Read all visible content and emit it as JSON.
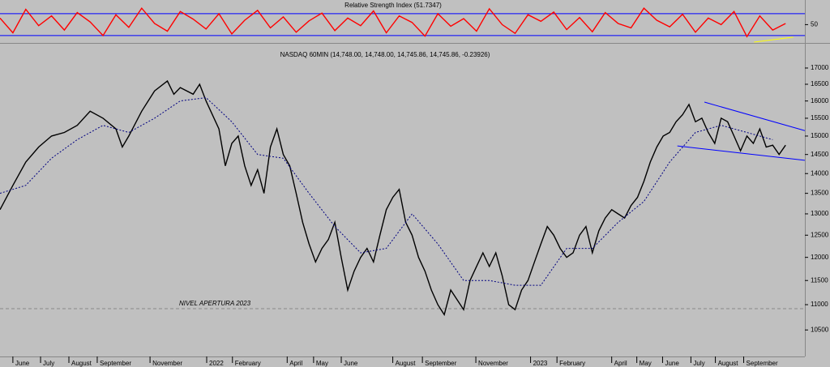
{
  "chart_data": [
    {
      "type": "line",
      "title": "Relative Strength Index (51.7347)",
      "xlim": [
        0,
        125
      ],
      "ylim": [
        18,
        95
      ],
      "yticks": [
        50
      ],
      "levels": [
        70,
        30
      ],
      "level_color": "#0000ff",
      "series": [
        {
          "name": "RSI",
          "color": "#ff0000",
          "x": [
            0,
            2,
            4,
            6,
            8,
            10,
            12,
            14,
            16,
            18,
            20,
            22,
            24,
            26,
            28,
            30,
            32,
            34,
            36,
            38,
            40,
            42,
            44,
            46,
            48,
            50,
            52,
            54,
            56,
            58,
            60,
            62,
            64,
            66,
            68,
            70,
            72,
            74,
            76,
            78,
            80,
            82,
            84,
            86,
            88,
            90,
            92,
            94,
            96,
            98,
            100,
            102,
            104,
            106,
            108,
            110,
            112,
            114,
            116,
            118,
            120,
            122
          ],
          "values": [
            62,
            35,
            78,
            48,
            66,
            40,
            72,
            55,
            30,
            68,
            45,
            80,
            52,
            38,
            74,
            60,
            42,
            70,
            33,
            58,
            76,
            44,
            64,
            36,
            57,
            71,
            39,
            62,
            48,
            75,
            35,
            66,
            54,
            29,
            70,
            47,
            61,
            38,
            79,
            50,
            34,
            68,
            56,
            73,
            41,
            63,
            37,
            72,
            52,
            44,
            80,
            58,
            46,
            69,
            36,
            62,
            50,
            74,
            28,
            66,
            40,
            52
          ]
        }
      ],
      "trendlines": [
        {
          "color": "#ffff00",
          "x": [
            117.1,
            123.2
          ],
          "y": [
            18,
            27
          ]
        }
      ]
    },
    {
      "type": "line",
      "title": "NASDAQ 60MIN (14,748.00, 14,748.00, 14,745.86, 14,745.86, -0.23926)",
      "xlim": [
        0,
        125
      ],
      "ylim": [
        10000,
        17750
      ],
      "log_scale": true,
      "yticks": [
        10500,
        11000,
        11500,
        12000,
        12500,
        13000,
        13500,
        14000,
        14500,
        15000,
        15500,
        16000,
        16500,
        17000
      ],
      "xticks": [
        {
          "value": 2,
          "label": "June"
        },
        {
          "value": 6.3,
          "label": "July"
        },
        {
          "value": 10.7,
          "label": "August"
        },
        {
          "value": 15.1,
          "label": "September"
        },
        {
          "value": 23.3,
          "label": "November"
        },
        {
          "value": 32.1,
          "label": "2022"
        },
        {
          "value": 36.1,
          "label": "February"
        },
        {
          "value": 44.6,
          "label": "April"
        },
        {
          "value": 48.7,
          "label": "May"
        },
        {
          "value": 53,
          "label": "June"
        },
        {
          "value": 61,
          "label": "August"
        },
        {
          "value": 65.6,
          "label": "September"
        },
        {
          "value": 73.9,
          "label": "November"
        },
        {
          "value": 82.4,
          "label": "2023"
        },
        {
          "value": 86.5,
          "label": "February"
        },
        {
          "value": 95,
          "label": "April"
        },
        {
          "value": 98.9,
          "label": "May"
        },
        {
          "value": 102.9,
          "label": "June"
        },
        {
          "value": 107.3,
          "label": "July"
        },
        {
          "value": 111.1,
          "label": "August"
        },
        {
          "value": 115.5,
          "label": "September"
        }
      ],
      "series": [
        {
          "name": "NASDAQ",
          "color": "#000000",
          "x": [
            0,
            2,
            4,
            6,
            8,
            10,
            12,
            14,
            16,
            18,
            19,
            20,
            22,
            24,
            26,
            27,
            28,
            30,
            31,
            32,
            34,
            35,
            36,
            37,
            38,
            39,
            40,
            41,
            42,
            43,
            44,
            45,
            46,
            47,
            48,
            49,
            50,
            51,
            52,
            53,
            54,
            55,
            56,
            57,
            58,
            59,
            60,
            61,
            62,
            63,
            64,
            65,
            66,
            67,
            68,
            69,
            70,
            71,
            72,
            73,
            74,
            75,
            76,
            77,
            78,
            79,
            80,
            81,
            82,
            83,
            84,
            85,
            86,
            87,
            88,
            89,
            90,
            91,
            92,
            93,
            94,
            95,
            96,
            97,
            98,
            99,
            100,
            101,
            102,
            103,
            104,
            105,
            106,
            107,
            108,
            109,
            110,
            111,
            112,
            113,
            114,
            115,
            116,
            117,
            118,
            119,
            120,
            121,
            122
          ],
          "values": [
            13100,
            13700,
            14300,
            14700,
            15000,
            15100,
            15300,
            15700,
            15500,
            15200,
            14700,
            15000,
            15700,
            16300,
            16600,
            16200,
            16400,
            16200,
            16500,
            16000,
            15200,
            14200,
            14800,
            15000,
            14200,
            13700,
            14100,
            13500,
            14700,
            15200,
            14500,
            14200,
            13500,
            12800,
            12300,
            11900,
            12200,
            12400,
            12800,
            12000,
            11300,
            11700,
            12000,
            12200,
            11900,
            12500,
            13100,
            13400,
            13600,
            12800,
            12500,
            12000,
            11700,
            11300,
            11000,
            10800,
            11300,
            11100,
            10900,
            11500,
            11800,
            12100,
            11800,
            12100,
            11600,
            11000,
            10900,
            11300,
            11500,
            11900,
            12300,
            12700,
            12500,
            12200,
            12000,
            12100,
            12500,
            12700,
            12100,
            12600,
            12900,
            13100,
            13000,
            12900,
            13200,
            13400,
            13800,
            14300,
            14700,
            15000,
            15100,
            15400,
            15600,
            15900,
            15400,
            15500,
            15100,
            14800,
            15500,
            15400,
            15000,
            14600,
            15000,
            14800,
            15200,
            14700,
            14750,
            14500,
            14750
          ]
        },
        {
          "name": "MA",
          "color": "#000080",
          "dashed": true,
          "x": [
            0,
            4,
            8,
            12,
            16,
            20,
            24,
            28,
            32,
            36,
            40,
            44,
            48,
            52,
            56,
            60,
            64,
            68,
            72,
            76,
            80,
            84,
            88,
            92,
            96,
            100,
            104,
            108,
            112,
            116,
            120
          ],
          "values": [
            13500,
            13700,
            14400,
            14900,
            15300,
            15100,
            15500,
            16000,
            16100,
            15400,
            14500,
            14400,
            13500,
            12700,
            12100,
            12200,
            13000,
            12300,
            11500,
            11500,
            11400,
            11400,
            12200,
            12200,
            12800,
            13300,
            14300,
            15100,
            15300,
            15100,
            14900
          ]
        }
      ],
      "trendlines": [
        {
          "color": "#0000ff",
          "x": [
            109.4,
            125
          ],
          "y": [
            15967,
            15150
          ]
        },
        {
          "color": "#0000ff",
          "x": [
            105.2,
            125
          ],
          "y": [
            14730,
            14345
          ]
        }
      ],
      "annotations": [
        {
          "text": "NIVEL APERTURA 2023",
          "y": 10920
        }
      ]
    }
  ]
}
